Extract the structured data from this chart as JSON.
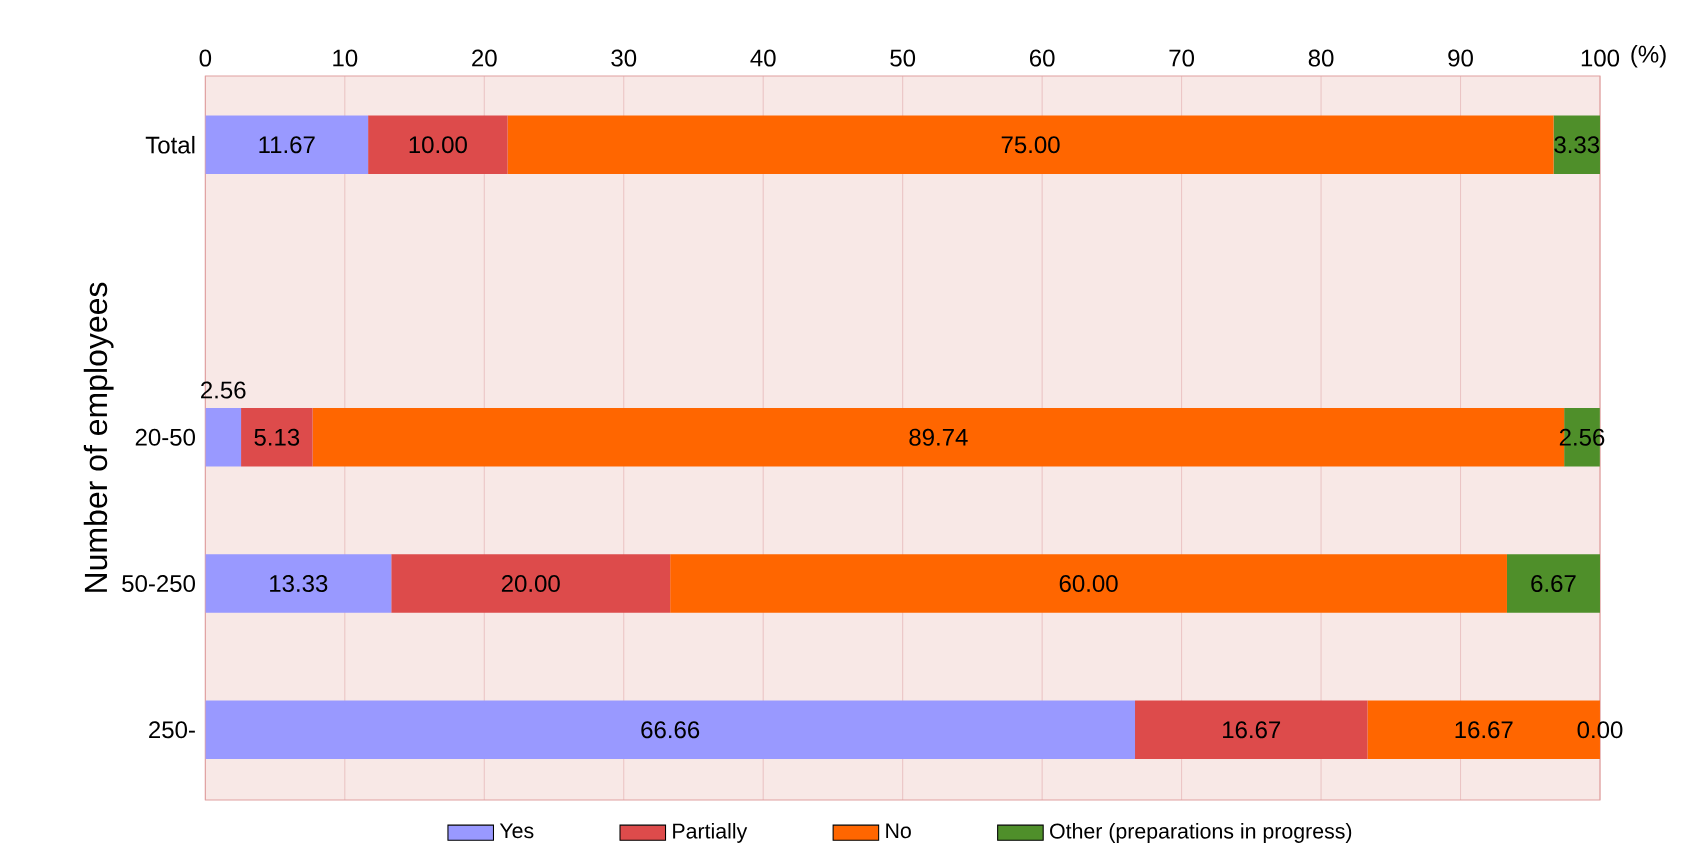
{
  "chart_data": {
    "type": "bar",
    "orientation": "horizontal",
    "stacked": true,
    "categories": [
      "Total",
      null,
      "20-50",
      "50-250",
      "250-"
    ],
    "series": [
      {
        "name": "Yes",
        "color": "#9999ff",
        "values": [
          11.67,
          null,
          2.56,
          13.33,
          66.66
        ],
        "value_labels": [
          "11.67",
          null,
          "2.56",
          "13.33",
          "66.66"
        ]
      },
      {
        "name": "Partially",
        "color": "#dd4b4b",
        "values": [
          10.0,
          null,
          5.13,
          20.0,
          16.67
        ],
        "value_labels": [
          "10.00",
          null,
          "5.13",
          "20.00",
          "16.67"
        ]
      },
      {
        "name": "No",
        "color": "#ff6600",
        "values": [
          75.0,
          null,
          89.74,
          60.0,
          16.67
        ],
        "value_labels": [
          "75.00",
          null,
          "89.74",
          "60.00",
          "16.67"
        ]
      },
      {
        "name": "Other (preparations in progress)",
        "color": "#4f8f2a",
        "values": [
          3.33,
          null,
          2.56,
          6.67,
          0.0
        ],
        "value_labels": [
          "3.33",
          null,
          "2.56",
          "6.67",
          "0.00"
        ]
      }
    ],
    "xlim": [
      0,
      100
    ],
    "xticks": [
      0,
      10,
      20,
      30,
      40,
      50,
      60,
      70,
      80,
      90,
      100
    ],
    "xlabel": "(%)",
    "ylabel": "Number of employees",
    "grid": "x",
    "legend": "bottom"
  }
}
